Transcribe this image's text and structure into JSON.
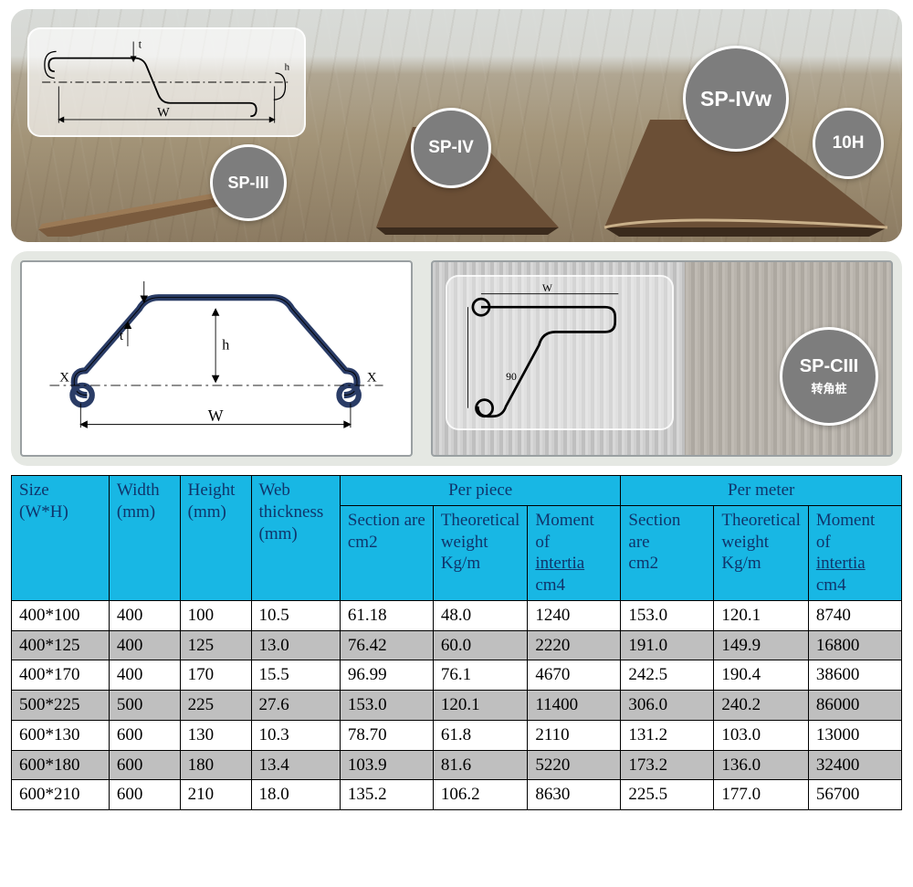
{
  "hero": {
    "badges": {
      "sp3": {
        "label": "SP-III"
      },
      "sp4": {
        "label": "SP-IV"
      },
      "sp4w": {
        "label": "SP-IVw"
      },
      "h10": {
        "label": "10H"
      }
    },
    "profile_labels": {
      "w": "W",
      "t": "t",
      "h": "h"
    }
  },
  "mid": {
    "diagram_labels": {
      "x": "X",
      "w": "W",
      "t": "t",
      "h": "h"
    },
    "photo_badge": {
      "label": "SP-CIII",
      "sub": "转角桩"
    }
  },
  "table": {
    "header_bg": "#18b7e4",
    "header_color": "#10356b",
    "columns_top": {
      "size": "Size\n(W*H)",
      "width": "Width\n(mm)",
      "height": "Height\n(mm)",
      "web": "Web\nthickness\n(mm)",
      "piece": "Per piece",
      "meter": "Per meter"
    },
    "columns_sub": {
      "area": "Section are\n cm2",
      "area2": "Section\nare\ncm2",
      "tw": "Theoretical\nweight\nKg/m",
      "moi": "Moment\nof\nintertia\ncm4"
    },
    "rows": [
      [
        "400*100",
        "400",
        "100",
        "10.5",
        "61.18",
        "48.0",
        "1240",
        "153.0",
        "120.1",
        "8740"
      ],
      [
        "400*125",
        "400",
        "125",
        "13.0",
        "76.42",
        "60.0",
        "2220",
        "191.0",
        "149.9",
        "16800"
      ],
      [
        "400*170",
        "400",
        "170",
        "15.5",
        "96.99",
        "76.1",
        "4670",
        "242.5",
        "190.4",
        "38600"
      ],
      [
        "500*225",
        "500",
        "225",
        "27.6",
        "153.0",
        "120.1",
        "11400",
        "306.0",
        "240.2",
        "86000"
      ],
      [
        "600*130",
        "600",
        "130",
        "10.3",
        "78.70",
        "61.8",
        "2110",
        "131.2",
        "103.0",
        "13000"
      ],
      [
        "600*180",
        "600",
        "180",
        "13.4",
        "103.9",
        "81.6",
        "5220",
        "173.2",
        "136.0",
        "32400"
      ],
      [
        "600*210",
        "600",
        "210",
        "18.0",
        "135.2",
        "106.2",
        "8630",
        "225.5",
        "177.0",
        "56700"
      ]
    ]
  },
  "colors": {
    "panel_bg": "#e5e8e3",
    "badge_bg": "#7d7d7d",
    "badge_border": "#ffffff",
    "row_alt": "#bfbfbf"
  }
}
